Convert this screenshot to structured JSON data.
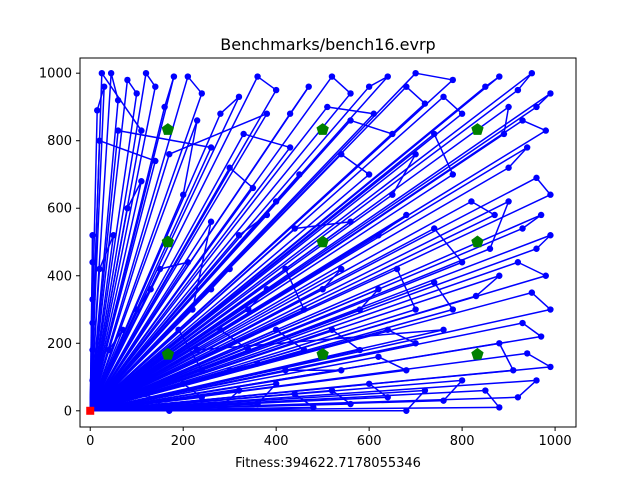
{
  "chart_data": {
    "type": "scatter",
    "title": "Benchmarks/bench16.evrp",
    "xlabel": "Fitness:394622.7178055346",
    "ylabel": "",
    "xlim": [
      -22,
      1045
    ],
    "ylim": [
      -48,
      1045
    ],
    "xticks": [
      0,
      200,
      400,
      600,
      800,
      1000
    ],
    "yticks": [
      0,
      200,
      400,
      600,
      800,
      1000
    ],
    "grid": false,
    "legend": "none",
    "colors": {
      "route": "#0000ff",
      "station": "#008000",
      "depot": "#ff0000"
    },
    "depot": {
      "x": 0,
      "y": 0,
      "marker": "square"
    },
    "charging_stations": [
      {
        "x": 167,
        "y": 833
      },
      {
        "x": 500,
        "y": 833
      },
      {
        "x": 833,
        "y": 833
      },
      {
        "x": 167,
        "y": 500
      },
      {
        "x": 500,
        "y": 500
      },
      {
        "x": 833,
        "y": 500
      },
      {
        "x": 167,
        "y": 167
      },
      {
        "x": 500,
        "y": 167
      },
      {
        "x": 833,
        "y": 167
      }
    ],
    "customers": [
      [
        15,
        890
      ],
      [
        30,
        960
      ],
      [
        45,
        1000
      ],
      [
        60,
        920
      ],
      [
        80,
        980
      ],
      [
        100,
        940
      ],
      [
        120,
        1000
      ],
      [
        140,
        960
      ],
      [
        160,
        900
      ],
      [
        180,
        990
      ],
      [
        210,
        990
      ],
      [
        240,
        940
      ],
      [
        280,
        880
      ],
      [
        320,
        930
      ],
      [
        360,
        990
      ],
      [
        400,
        950
      ],
      [
        430,
        880
      ],
      [
        470,
        960
      ],
      [
        520,
        990
      ],
      [
        560,
        940
      ],
      [
        600,
        960
      ],
      [
        640,
        990
      ],
      [
        680,
        960
      ],
      [
        720,
        910
      ],
      [
        760,
        930
      ],
      [
        800,
        880
      ],
      [
        850,
        960
      ],
      [
        880,
        990
      ],
      [
        920,
        950
      ],
      [
        950,
        1000
      ],
      [
        990,
        940
      ],
      [
        960,
        900
      ],
      [
        930,
        860
      ],
      [
        980,
        830
      ],
      [
        940,
        780
      ],
      [
        900,
        720
      ],
      [
        960,
        690
      ],
      [
        990,
        640
      ],
      [
        970,
        580
      ],
      [
        930,
        540
      ],
      [
        990,
        520
      ],
      [
        960,
        480
      ],
      [
        920,
        440
      ],
      [
        980,
        400
      ],
      [
        950,
        350
      ],
      [
        990,
        300
      ],
      [
        930,
        260
      ],
      [
        970,
        220
      ],
      [
        940,
        170
      ],
      [
        990,
        130
      ],
      [
        960,
        90
      ],
      [
        920,
        40
      ],
      [
        880,
        10
      ],
      [
        850,
        60
      ],
      [
        800,
        90
      ],
      [
        760,
        30
      ],
      [
        720,
        60
      ],
      [
        680,
        0
      ],
      [
        640,
        40
      ],
      [
        600,
        80
      ],
      [
        560,
        20
      ],
      [
        520,
        60
      ],
      [
        480,
        10
      ],
      [
        440,
        50
      ],
      [
        400,
        80
      ],
      [
        360,
        20
      ],
      [
        320,
        60
      ],
      [
        280,
        10
      ],
      [
        240,
        40
      ],
      [
        200,
        80
      ],
      [
        170,
        0
      ],
      [
        120,
        50
      ],
      [
        90,
        20
      ],
      [
        60,
        70
      ],
      [
        30,
        30
      ],
      [
        10,
        120
      ],
      [
        40,
        180
      ],
      [
        70,
        240
      ],
      [
        100,
        300
      ],
      [
        130,
        360
      ],
      [
        20,
        420
      ],
      [
        50,
        520
      ],
      [
        80,
        600
      ],
      [
        110,
        680
      ],
      [
        140,
        740
      ],
      [
        20,
        800
      ],
      [
        60,
        830
      ],
      [
        260,
        780
      ],
      [
        300,
        720
      ],
      [
        350,
        660
      ],
      [
        400,
        620
      ],
      [
        450,
        700
      ],
      [
        540,
        760
      ],
      [
        600,
        700
      ],
      [
        650,
        640
      ],
      [
        700,
        760
      ],
      [
        740,
        820
      ],
      [
        780,
        700
      ],
      [
        820,
        620
      ],
      [
        870,
        580
      ],
      [
        900,
        620
      ],
      [
        860,
        480
      ],
      [
        880,
        400
      ],
      [
        830,
        340
      ],
      [
        780,
        300
      ],
      [
        740,
        380
      ],
      [
        700,
        300
      ],
      [
        660,
        420
      ],
      [
        620,
        360
      ],
      [
        580,
        300
      ],
      [
        540,
        420
      ],
      [
        500,
        360
      ],
      [
        460,
        300
      ],
      [
        420,
        420
      ],
      [
        380,
        360
      ],
      [
        340,
        300
      ],
      [
        300,
        420
      ],
      [
        260,
        360
      ],
      [
        220,
        300
      ],
      [
        260,
        560
      ],
      [
        320,
        520
      ],
      [
        380,
        580
      ],
      [
        440,
        540
      ],
      [
        560,
        560
      ],
      [
        620,
        520
      ],
      [
        680,
        580
      ],
      [
        740,
        540
      ],
      [
        800,
        440
      ],
      [
        700,
        200
      ],
      [
        640,
        240
      ],
      [
        580,
        180
      ],
      [
        520,
        240
      ],
      [
        460,
        180
      ],
      [
        400,
        240
      ],
      [
        340,
        180
      ],
      [
        280,
        240
      ],
      [
        230,
        180
      ],
      [
        760,
        240
      ],
      [
        880,
        200
      ],
      [
        910,
        120
      ],
      [
        680,
        120
      ],
      [
        620,
        160
      ],
      [
        540,
        120
      ],
      [
        420,
        120
      ],
      [
        360,
        140
      ],
      [
        300,
        120
      ],
      [
        240,
        120
      ],
      [
        190,
        240
      ],
      [
        150,
        420
      ],
      [
        210,
        440
      ],
      [
        200,
        640
      ],
      [
        230,
        860
      ],
      [
        330,
        820
      ],
      [
        430,
        780
      ],
      [
        560,
        860
      ],
      [
        650,
        820
      ],
      [
        890,
        820
      ],
      [
        900,
        900
      ],
      [
        780,
        980
      ],
      [
        700,
        1000
      ],
      [
        610,
        880
      ],
      [
        510,
        900
      ],
      [
        380,
        880
      ],
      [
        170,
        760
      ],
      [
        110,
        830
      ],
      [
        25,
        1000
      ],
      [
        5,
        330
      ],
      [
        5,
        520
      ],
      [
        5,
        440
      ],
      [
        5,
        260
      ],
      [
        5,
        180
      ],
      [
        5,
        90
      ]
    ],
    "route_order": [
      0,
      1,
      2,
      3,
      4,
      5,
      6,
      7,
      8,
      9,
      10,
      11,
      12,
      13,
      14,
      15,
      16,
      17,
      18,
      19,
      20,
      21,
      22,
      23,
      24,
      25,
      26,
      27,
      28,
      29,
      30,
      31,
      32,
      33,
      34,
      35,
      36,
      37,
      38,
      39,
      40,
      41,
      42,
      43,
      44,
      45,
      46,
      47,
      48,
      49,
      50,
      51,
      52,
      53,
      54,
      55,
      56,
      57,
      58,
      59,
      60,
      61,
      62,
      63,
      64,
      65,
      66,
      67,
      68,
      69,
      70,
      71,
      72,
      73,
      74,
      75,
      76,
      77,
      78,
      79,
      80,
      81,
      82,
      83,
      84,
      85,
      86,
      87,
      88,
      89,
      90,
      91,
      92,
      93,
      94,
      95,
      96,
      97,
      98,
      99,
      100,
      101,
      102,
      103,
      104,
      105,
      106,
      107,
      108,
      109,
      110,
      111,
      112,
      113,
      114,
      115,
      116,
      117,
      118,
      119,
      120,
      121,
      122,
      123,
      124,
      125,
      126,
      127,
      128,
      129,
      130,
      131,
      132,
      133,
      134,
      135,
      136,
      137,
      138,
      139,
      140,
      141,
      142,
      143,
      144,
      145,
      146,
      147,
      148,
      149,
      150,
      151,
      152,
      153,
      154,
      155,
      156,
      157,
      158,
      159,
      160,
      161,
      162,
      163,
      164,
      165,
      166,
      167,
      168,
      169,
      170,
      171
    ]
  }
}
